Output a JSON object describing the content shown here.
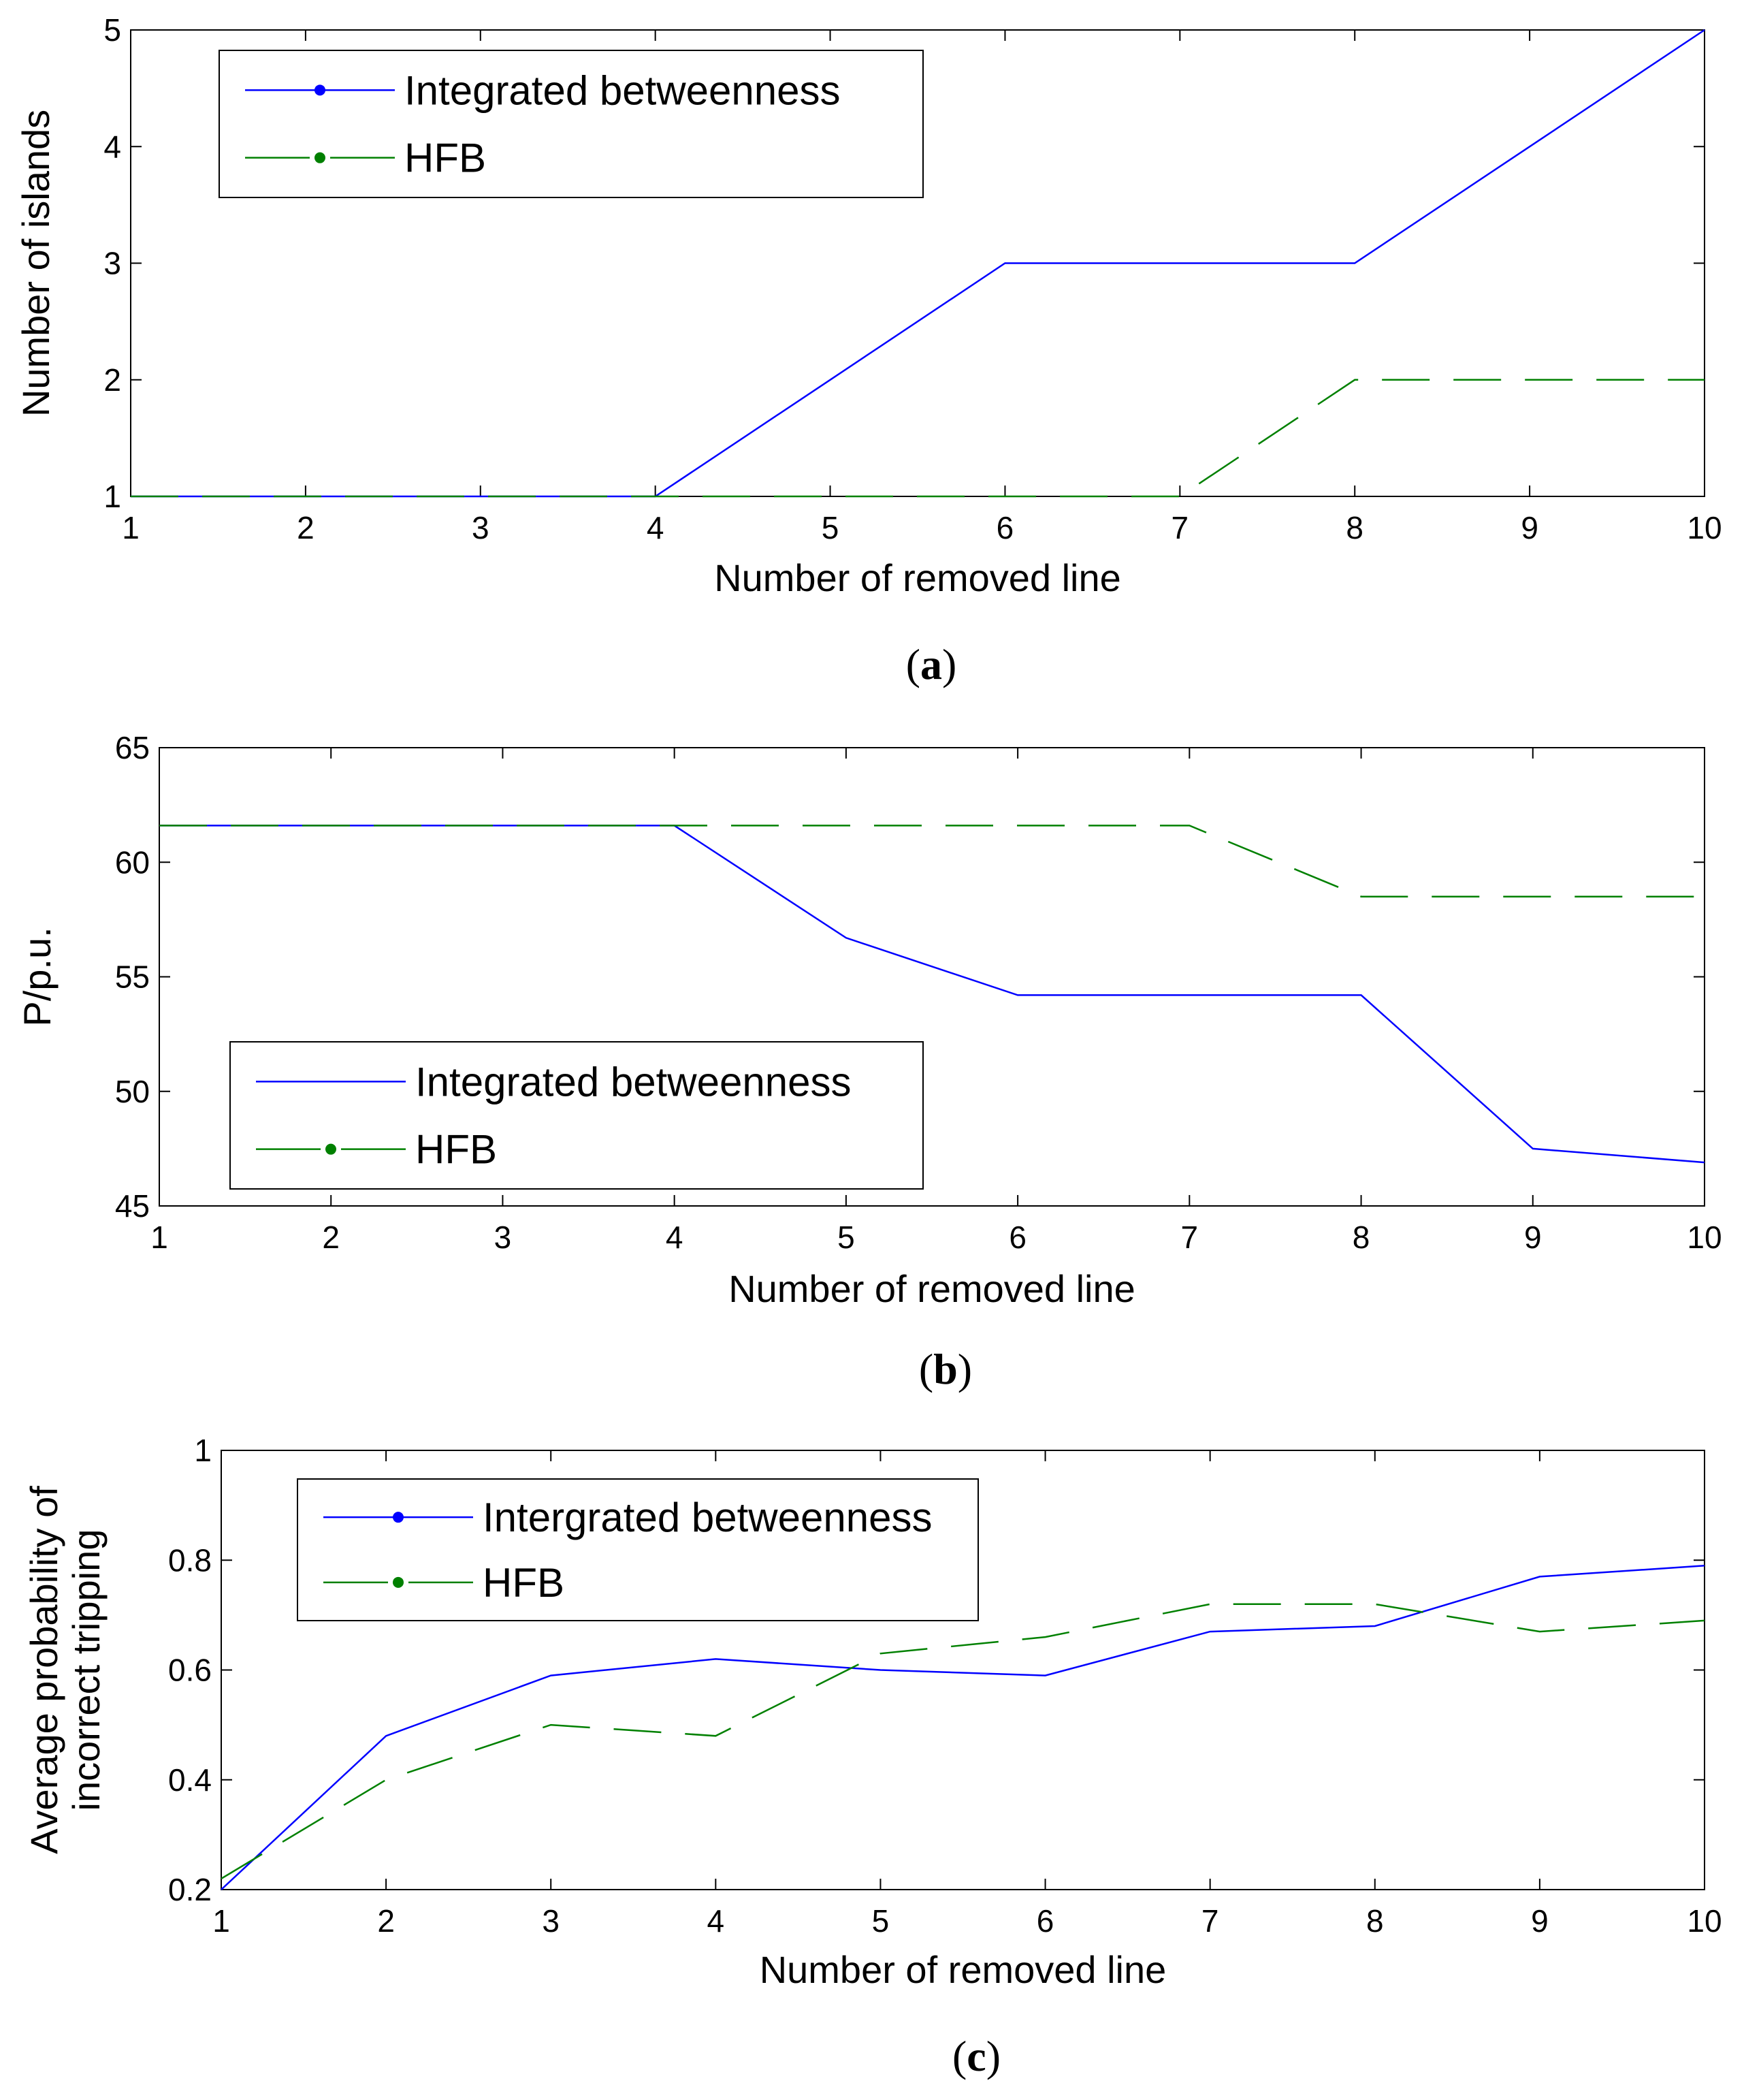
{
  "chart_data": [
    {
      "type": "line",
      "panel_label": "a",
      "x": [
        1,
        2,
        3,
        4,
        5,
        6,
        7,
        8,
        9,
        10
      ],
      "series": [
        {
          "name": "Integrated betweenness",
          "values": [
            1,
            1,
            1,
            1,
            2,
            3,
            3,
            3,
            4,
            5
          ],
          "color": "#0000ff",
          "dash": "solid"
        },
        {
          "name": "HFB",
          "values": [
            1,
            1,
            1,
            1,
            1,
            1,
            1,
            2,
            2,
            2
          ],
          "color": "#008000",
          "dash": "dashed"
        }
      ],
      "xlabel": "Number of removed line",
      "ylabel": "Number of islands",
      "xlim": [
        1,
        10
      ],
      "ylim": [
        1,
        5
      ],
      "xticks": [
        "1",
        "2",
        "3",
        "4",
        "5",
        "6",
        "7",
        "8",
        "9",
        "10"
      ],
      "yticks": [
        "1",
        "2",
        "3",
        "4",
        "5"
      ],
      "legend_position": "top-left"
    },
    {
      "type": "line",
      "panel_label": "b",
      "x": [
        1,
        2,
        3,
        4,
        5,
        6,
        7,
        8,
        9,
        10
      ],
      "series": [
        {
          "name": "Integrated betweenness",
          "values": [
            61.6,
            61.6,
            61.6,
            61.6,
            56.7,
            54.2,
            54.2,
            54.2,
            47.5,
            46.9
          ],
          "color": "#0000ff",
          "dash": "solid"
        },
        {
          "name": "HFB",
          "values": [
            61.6,
            61.6,
            61.6,
            61.6,
            61.6,
            61.6,
            61.6,
            58.5,
            58.5,
            58.5
          ],
          "color": "#008000",
          "dash": "dashed"
        }
      ],
      "xlabel": "Number of removed line",
      "ylabel": "P/p.u.",
      "xlim": [
        1,
        10
      ],
      "ylim": [
        45,
        65
      ],
      "xticks": [
        "1",
        "2",
        "3",
        "4",
        "5",
        "6",
        "7",
        "8",
        "9",
        "10"
      ],
      "yticks": [
        "45",
        "50",
        "55",
        "60",
        "65"
      ],
      "legend_position": "bottom-left"
    },
    {
      "type": "line",
      "panel_label": "c",
      "x": [
        1,
        2,
        3,
        4,
        5,
        6,
        7,
        8,
        9,
        10
      ],
      "series": [
        {
          "name": "Intergrated betweenness",
          "values": [
            0.2,
            0.48,
            0.59,
            0.62,
            0.6,
            0.59,
            0.67,
            0.68,
            0.77,
            0.79
          ],
          "color": "#0000ff",
          "dash": "solid"
        },
        {
          "name": "HFB",
          "values": [
            0.22,
            0.4,
            0.5,
            0.48,
            0.63,
            0.66,
            0.72,
            0.72,
            0.67,
            0.69
          ],
          "color": "#008000",
          "dash": "dashed"
        }
      ],
      "xlabel": "Number of removed line",
      "ylabel": [
        "Average probability of",
        "incorrect tripping"
      ],
      "xlim": [
        1,
        10
      ],
      "ylim": [
        0.2,
        1
      ],
      "xticks": [
        "1",
        "2",
        "3",
        "4",
        "5",
        "6",
        "7",
        "8",
        "9",
        "10"
      ],
      "yticks": [
        "0.2",
        "0.4",
        "0.6",
        "0.8",
        "1"
      ],
      "legend_position": "top-left"
    }
  ]
}
